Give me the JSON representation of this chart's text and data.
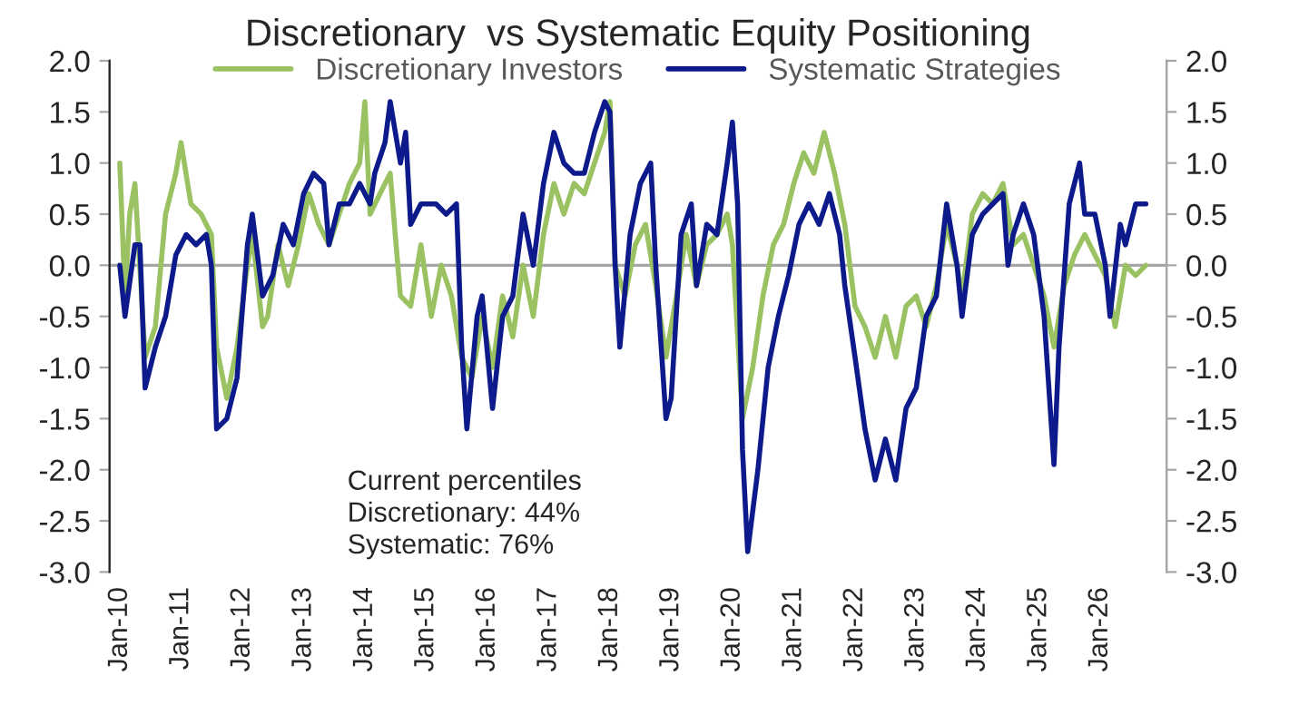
{
  "chart_data": {
    "type": "line",
    "title": "Discretionary  vs Systematic Equity Positioning",
    "annotations": [
      "Current percentiles\nDiscretionary: 44%\nSystematic: 76%"
    ],
    "legend": "top",
    "grid": false,
    "marker": "none",
    "line_style": "solid",
    "xlim": [
      "2009-11",
      "2027-02"
    ],
    "xticks": [
      {
        "value": "2010-01",
        "label": "Jan-10"
      },
      {
        "value": "2011-01",
        "label": "Jan-11"
      },
      {
        "value": "2012-01",
        "label": "Jan-12"
      },
      {
        "value": "2013-01",
        "label": "Jan-13"
      },
      {
        "value": "2014-01",
        "label": "Jan-14"
      },
      {
        "value": "2015-01",
        "label": "Jan-15"
      },
      {
        "value": "2016-01",
        "label": "Jan-16"
      },
      {
        "value": "2017-01",
        "label": "Jan-17"
      },
      {
        "value": "2018-01",
        "label": "Jan-18"
      },
      {
        "value": "2019-01",
        "label": "Jan-19"
      },
      {
        "value": "2020-01",
        "label": "Jan-20"
      },
      {
        "value": "2021-01",
        "label": "Jan-21"
      },
      {
        "value": "2022-01",
        "label": "Jan-22"
      },
      {
        "value": "2023-01",
        "label": "Jan-23"
      },
      {
        "value": "2024-01",
        "label": "Jan-24"
      },
      {
        "value": "2025-01",
        "label": "Jan-25"
      },
      {
        "value": "2026-01",
        "label": "Jan-26"
      }
    ],
    "ylim": [
      -3.0,
      2.0
    ],
    "yticks": [
      {
        "value": 2.0,
        "label": "2.0"
      },
      {
        "value": 1.5,
        "label": "1.5"
      },
      {
        "value": 1.0,
        "label": "1.0"
      },
      {
        "value": 0.5,
        "label": "0.5"
      },
      {
        "value": 0.0,
        "label": "0.0"
      },
      {
        "value": -0.5,
        "label": "-0.5"
      },
      {
        "value": -1.0,
        "label": "-1.0"
      },
      {
        "value": -1.5,
        "label": "-1.5"
      },
      {
        "value": -2.0,
        "label": "-2.0"
      },
      {
        "value": -2.5,
        "label": "-2.5"
      },
      {
        "value": -3.0,
        "label": "-3.0"
      }
    ],
    "y2lim": [
      -3.0,
      2.0
    ],
    "y2ticks": [
      {
        "value": 2.0,
        "label": "2.0"
      },
      {
        "value": 1.5,
        "label": "1.5"
      },
      {
        "value": 1.0,
        "label": "1.0"
      },
      {
        "value": 0.5,
        "label": "0.5"
      },
      {
        "value": 0.0,
        "label": "0.0"
      },
      {
        "value": -0.5,
        "label": "-0.5"
      },
      {
        "value": -1.0,
        "label": "-1.0"
      },
      {
        "value": -1.5,
        "label": "-1.5"
      },
      {
        "value": -2.0,
        "label": "-2.0"
      },
      {
        "value": -2.5,
        "label": "-2.5"
      },
      {
        "value": -3.0,
        "label": "-3.0"
      }
    ],
    "ref_lines": [
      {
        "axis": "y",
        "value": 0,
        "color": "#a6a6a6"
      }
    ],
    "series": [
      {
        "name": "Discretionary Investors",
        "color": "#9bc262",
        "x": [
          "2010-01",
          "2010-02",
          "2010-03",
          "2010-04",
          "2010-06",
          "2010-08",
          "2010-10",
          "2010-12",
          "2011-01",
          "2011-03",
          "2011-05",
          "2011-07",
          "2011-08",
          "2011-10",
          "2011-12",
          "2012-02",
          "2012-03",
          "2012-05",
          "2012-06",
          "2012-08",
          "2012-10",
          "2012-12",
          "2013-02",
          "2013-04",
          "2013-06",
          "2013-08",
          "2013-10",
          "2013-12",
          "2014-01",
          "2014-02",
          "2014-04",
          "2014-06",
          "2014-07",
          "2014-08",
          "2014-10",
          "2014-12",
          "2015-02",
          "2015-04",
          "2015-06",
          "2015-08",
          "2015-10",
          "2015-12",
          "2016-02",
          "2016-04",
          "2016-06",
          "2016-08",
          "2016-10",
          "2016-12",
          "2017-02",
          "2017-04",
          "2017-06",
          "2017-08",
          "2017-10",
          "2017-12",
          "2018-01",
          "2018-02",
          "2018-04",
          "2018-06",
          "2018-08",
          "2018-10",
          "2018-12",
          "2019-02",
          "2019-04",
          "2019-06",
          "2019-08",
          "2019-10",
          "2019-12",
          "2020-01",
          "2020-03",
          "2020-05",
          "2020-07",
          "2020-09",
          "2020-11",
          "2021-01",
          "2021-03",
          "2021-05",
          "2021-07",
          "2021-09",
          "2021-11",
          "2022-01",
          "2022-03",
          "2022-05",
          "2022-07",
          "2022-09",
          "2022-11",
          "2023-01",
          "2023-03",
          "2023-05",
          "2023-07",
          "2023-09",
          "2023-10",
          "2023-12",
          "2024-02",
          "2024-04",
          "2024-06",
          "2024-08",
          "2024-10",
          "2024-12",
          "2025-02",
          "2025-04",
          "2025-06",
          "2025-08",
          "2025-10",
          "2025-12",
          "2026-02",
          "2026-04",
          "2026-06",
          "2026-08",
          "2026-10"
        ],
        "values": [
          1.0,
          -0.3,
          0.5,
          0.8,
          -0.9,
          -0.6,
          0.5,
          0.9,
          1.2,
          0.6,
          0.5,
          0.3,
          -0.8,
          -1.3,
          -0.8,
          0.0,
          0.3,
          -0.6,
          -0.5,
          0.2,
          -0.2,
          0.2,
          0.7,
          0.4,
          0.2,
          0.5,
          0.8,
          1.0,
          1.6,
          0.5,
          0.7,
          0.9,
          0.3,
          -0.3,
          -0.4,
          0.2,
          -0.5,
          0.0,
          -0.3,
          -0.9,
          -1.1,
          -0.5,
          -1.0,
          -0.3,
          -0.7,
          0.0,
          -0.5,
          0.3,
          0.8,
          0.5,
          0.8,
          0.7,
          1.0,
          1.3,
          1.6,
          0.0,
          -0.3,
          0.2,
          0.4,
          -0.2,
          -0.9,
          -0.3,
          0.3,
          -0.2,
          0.2,
          0.3,
          0.5,
          0.2,
          -1.5,
          -1.0,
          -0.3,
          0.2,
          0.4,
          0.8,
          1.1,
          0.9,
          1.3,
          0.9,
          0.4,
          -0.4,
          -0.6,
          -0.9,
          -0.5,
          -0.9,
          -0.4,
          -0.3,
          -0.6,
          -0.2,
          0.4,
          0.0,
          -0.3,
          0.5,
          0.7,
          0.6,
          0.8,
          0.2,
          0.3,
          0.0,
          -0.3,
          -0.8,
          -0.2,
          0.1,
          0.3,
          0.1,
          -0.1,
          -0.6,
          0.0,
          -0.1,
          0.0
        ]
      },
      {
        "name": "Systematic Strategies",
        "color": "#0d1a8c",
        "x": [
          "2010-01",
          "2010-02",
          "2010-04",
          "2010-05",
          "2010-06",
          "2010-08",
          "2010-10",
          "2010-12",
          "2011-02",
          "2011-04",
          "2011-06",
          "2011-07",
          "2011-08",
          "2011-10",
          "2011-12",
          "2012-02",
          "2012-03",
          "2012-05",
          "2012-07",
          "2012-09",
          "2012-11",
          "2013-01",
          "2013-03",
          "2013-05",
          "2013-06",
          "2013-08",
          "2013-10",
          "2013-12",
          "2014-02",
          "2014-03",
          "2014-05",
          "2014-06",
          "2014-08",
          "2014-09",
          "2014-10",
          "2014-12",
          "2015-03",
          "2015-05",
          "2015-07",
          "2015-08",
          "2015-09",
          "2015-11",
          "2015-12",
          "2016-02",
          "2016-04",
          "2016-06",
          "2016-08",
          "2016-10",
          "2016-12",
          "2017-02",
          "2017-04",
          "2017-06",
          "2017-08",
          "2017-10",
          "2017-12",
          "2018-01",
          "2018-02",
          "2018-03",
          "2018-05",
          "2018-07",
          "2018-09",
          "2018-10",
          "2018-12",
          "2019-01",
          "2019-03",
          "2019-05",
          "2019-06",
          "2019-08",
          "2019-10",
          "2019-12",
          "2020-01",
          "2020-02",
          "2020-03",
          "2020-04",
          "2020-06",
          "2020-08",
          "2020-10",
          "2020-12",
          "2021-02",
          "2021-04",
          "2021-06",
          "2021-08",
          "2021-10",
          "2021-11",
          "2022-01",
          "2022-03",
          "2022-05",
          "2022-07",
          "2022-09",
          "2022-11",
          "2023-01",
          "2023-03",
          "2023-05",
          "2023-07",
          "2023-09",
          "2023-10",
          "2023-12",
          "2024-02",
          "2024-04",
          "2024-06",
          "2024-07",
          "2024-08",
          "2024-10",
          "2024-12",
          "2025-02",
          "2025-04",
          "2025-05",
          "2025-07",
          "2025-09",
          "2025-10",
          "2025-12",
          "2026-02",
          "2026-03",
          "2026-05",
          "2026-06",
          "2026-08",
          "2026-10"
        ],
        "values": [
          0.0,
          -0.5,
          0.2,
          0.2,
          -1.2,
          -0.8,
          -0.5,
          0.1,
          0.3,
          0.2,
          0.3,
          0.0,
          -1.6,
          -1.5,
          -1.1,
          0.2,
          0.5,
          -0.3,
          -0.1,
          0.4,
          0.2,
          0.7,
          0.9,
          0.8,
          0.2,
          0.6,
          0.6,
          0.8,
          0.6,
          0.9,
          1.2,
          1.6,
          1.0,
          1.3,
          0.4,
          0.6,
          0.6,
          0.5,
          0.6,
          -0.8,
          -1.6,
          -0.5,
          -0.3,
          -1.4,
          -0.5,
          -0.3,
          0.5,
          0.0,
          0.8,
          1.3,
          1.0,
          0.9,
          0.9,
          1.3,
          1.6,
          1.5,
          0.0,
          -0.8,
          0.3,
          0.8,
          1.0,
          0.0,
          -1.5,
          -1.3,
          0.3,
          0.6,
          -0.2,
          0.4,
          0.3,
          1.0,
          1.4,
          0.6,
          -1.8,
          -2.8,
          -2.0,
          -1.0,
          -0.5,
          -0.1,
          0.4,
          0.6,
          0.4,
          0.7,
          0.3,
          -0.2,
          -0.9,
          -1.6,
          -2.1,
          -1.7,
          -2.1,
          -1.4,
          -1.2,
          -0.5,
          -0.3,
          0.6,
          0.0,
          -0.5,
          0.3,
          0.5,
          0.6,
          0.7,
          0.0,
          0.3,
          0.6,
          0.3,
          -0.5,
          -1.95,
          -0.8,
          0.6,
          1.0,
          0.5,
          0.5,
          0.0,
          -0.5,
          0.4,
          0.2,
          0.6,
          0.6
        ]
      }
    ]
  }
}
